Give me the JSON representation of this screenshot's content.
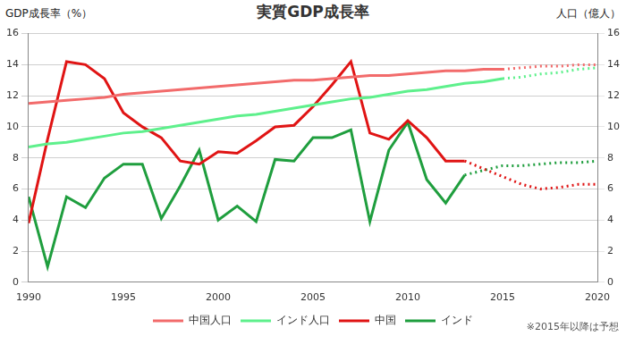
{
  "chart_data": {
    "type": "line",
    "title": "実質GDP成長率",
    "ylabel": "GDP成長率（%）",
    "y2label": "人口（億人）",
    "annotations": [
      "※2015年以降は予想"
    ],
    "x": [
      1990,
      1991,
      1992,
      1993,
      1994,
      1995,
      1996,
      1997,
      1998,
      1999,
      2000,
      2001,
      2002,
      2003,
      2004,
      2005,
      2006,
      2007,
      2008,
      2009,
      2010,
      2011,
      2012,
      2013,
      2014,
      2015,
      2016,
      2017,
      2018,
      2019,
      2020
    ],
    "xlim": [
      1990,
      2020
    ],
    "xticks": [
      1990,
      1995,
      2000,
      2005,
      2010,
      2015,
      2020
    ],
    "ylim": [
      0,
      16
    ],
    "yticks": [
      0,
      2,
      4,
      6,
      8,
      10,
      12,
      14,
      16
    ],
    "y2lim": [
      0,
      16
    ],
    "y2ticks": [
      0,
      2,
      4,
      6,
      8,
      10,
      12,
      14,
      16
    ],
    "grid": true,
    "legend": "bottom",
    "series": [
      {
        "name": "中国人口",
        "color": "#f26b6b",
        "axis": "y2",
        "line_style": "solid",
        "marker": "none",
        "values": [
          11.5,
          11.6,
          11.7,
          11.8,
          11.9,
          12.1,
          12.2,
          12.3,
          12.4,
          12.5,
          12.6,
          12.7,
          12.8,
          12.9,
          13.0,
          13.0,
          13.1,
          13.2,
          13.3,
          13.3,
          13.4,
          13.5,
          13.6,
          13.6,
          13.7,
          13.7,
          null,
          null,
          null,
          null,
          null
        ]
      },
      {
        "name": "中国人口",
        "color": "#f26b6b",
        "axis": "y2",
        "line_style": "dotted",
        "marker": "none",
        "values": [
          null,
          null,
          null,
          null,
          null,
          null,
          null,
          null,
          null,
          null,
          null,
          null,
          null,
          null,
          null,
          null,
          null,
          null,
          null,
          null,
          null,
          null,
          null,
          null,
          null,
          13.7,
          13.8,
          13.9,
          13.9,
          14.0,
          14.0
        ]
      },
      {
        "name": "インド人口",
        "color": "#5ef08c",
        "axis": "y2",
        "line_style": "solid",
        "marker": "none",
        "values": [
          8.7,
          8.9,
          9.0,
          9.2,
          9.4,
          9.6,
          9.7,
          9.9,
          10.1,
          10.3,
          10.5,
          10.7,
          10.8,
          11.0,
          11.2,
          11.4,
          11.6,
          11.8,
          11.9,
          12.1,
          12.3,
          12.4,
          12.6,
          12.8,
          12.9,
          13.1,
          null,
          null,
          null,
          null,
          null
        ]
      },
      {
        "name": "インド人口",
        "color": "#5ef08c",
        "axis": "y2",
        "line_style": "dotted",
        "marker": "none",
        "values": [
          null,
          null,
          null,
          null,
          null,
          null,
          null,
          null,
          null,
          null,
          null,
          null,
          null,
          null,
          null,
          null,
          null,
          null,
          null,
          null,
          null,
          null,
          null,
          null,
          null,
          13.1,
          13.2,
          13.4,
          13.5,
          13.7,
          13.8
        ]
      },
      {
        "name": "中国",
        "color": "#e01414",
        "line_style": "solid",
        "marker": "none",
        "values": [
          3.8,
          9.2,
          14.2,
          14.0,
          13.1,
          10.9,
          10.0,
          9.3,
          7.8,
          7.6,
          8.4,
          8.3,
          9.1,
          10.0,
          10.1,
          11.3,
          12.7,
          14.2,
          9.6,
          9.2,
          10.4,
          9.3,
          7.8,
          7.8,
          null,
          null,
          null,
          null,
          null,
          null,
          null
        ]
      },
      {
        "name": "中国",
        "color": "#e01414",
        "line_style": "dotted",
        "marker": "none",
        "values": [
          null,
          null,
          null,
          null,
          null,
          null,
          null,
          null,
          null,
          null,
          null,
          null,
          null,
          null,
          null,
          null,
          null,
          null,
          null,
          null,
          null,
          null,
          null,
          7.8,
          7.3,
          6.8,
          6.3,
          6.0,
          6.1,
          6.3,
          6.3
        ]
      },
      {
        "name": "インド",
        "color": "#1f9e3e",
        "line_style": "solid",
        "marker": "none",
        "values": [
          5.5,
          1.0,
          5.5,
          4.8,
          6.7,
          7.6,
          7.6,
          4.1,
          6.2,
          8.5,
          4.0,
          4.9,
          3.9,
          7.9,
          7.8,
          9.3,
          9.3,
          9.8,
          3.9,
          8.5,
          10.3,
          6.6,
          5.1,
          6.9,
          null,
          null,
          null,
          null,
          null,
          null,
          null
        ]
      },
      {
        "name": "インド",
        "color": "#1f9e3e",
        "line_style": "dotted",
        "marker": "none",
        "values": [
          null,
          null,
          null,
          null,
          null,
          null,
          null,
          null,
          null,
          null,
          null,
          null,
          null,
          null,
          null,
          null,
          null,
          null,
          null,
          null,
          null,
          null,
          null,
          6.9,
          7.2,
          7.5,
          7.5,
          7.6,
          7.7,
          7.7,
          7.8
        ]
      }
    ]
  }
}
